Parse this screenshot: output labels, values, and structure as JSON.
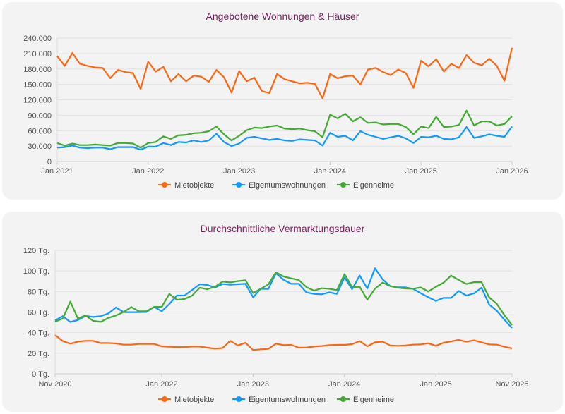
{
  "colors": {
    "Mietobjekte": "#ff6611",
    "Eigentumswohnungen": "#1199ff",
    "Eigenheime": "#44aa33",
    "title": "#7b1f5e"
  },
  "chart_data": [
    {
      "type": "line",
      "title": "Angebotene Wohnungen & Häuser",
      "xlabel": "",
      "ylabel": "",
      "x_range": [
        "2021-01",
        "2026-01"
      ],
      "ylim": [
        0,
        240000
      ],
      "y_ticks": [
        "0",
        "30.000",
        "60.000",
        "90.000",
        "120.000",
        "150.000",
        "180.000",
        "210.000",
        "240.000"
      ],
      "y_tick_values": [
        0,
        30000,
        60000,
        90000,
        120000,
        150000,
        180000,
        210000,
        240000
      ],
      "x_ticks": [
        "Jan 2021",
        "Jan 2022",
        "Jan 2023",
        "Jan 2024",
        "Jan 2025",
        "Jan 2026"
      ],
      "x_tick_dates": [
        "2021-01",
        "2022-01",
        "2023-01",
        "2024-01",
        "2025-01",
        "2026-01"
      ],
      "grid": true,
      "legend": "bottom",
      "x": [
        "2021-01",
        "2021-02",
        "2021-03",
        "2021-04",
        "2021-05",
        "2021-06",
        "2021-07",
        "2021-08",
        "2021-09",
        "2021-10",
        "2021-11",
        "2021-12",
        "2022-01",
        "2022-02",
        "2022-03",
        "2022-04",
        "2022-05",
        "2022-06",
        "2022-07",
        "2022-08",
        "2022-09",
        "2022-10",
        "2022-11",
        "2022-12",
        "2023-01",
        "2023-02",
        "2023-03",
        "2023-04",
        "2023-05",
        "2023-06",
        "2023-07",
        "2023-08",
        "2023-09",
        "2023-10",
        "2023-11",
        "2023-12",
        "2024-01",
        "2024-02",
        "2024-03",
        "2024-04",
        "2024-05",
        "2024-06",
        "2024-07",
        "2024-08",
        "2024-09",
        "2024-10",
        "2024-11",
        "2024-12",
        "2025-01",
        "2025-02",
        "2025-03",
        "2025-04",
        "2025-05",
        "2025-06",
        "2025-07",
        "2025-08",
        "2025-09",
        "2025-10",
        "2025-11",
        "2025-12",
        "2026-01"
      ],
      "series": [
        {
          "name": "Mietobjekte",
          "values": [
            205000,
            186000,
            211000,
            190000,
            186000,
            183000,
            182000,
            162000,
            178000,
            174000,
            172000,
            141000,
            194000,
            175000,
            184000,
            156000,
            170000,
            156000,
            167000,
            165000,
            155000,
            178000,
            164000,
            134000,
            176000,
            156000,
            163000,
            137000,
            133000,
            170000,
            160000,
            156000,
            152000,
            153000,
            151000,
            123000,
            170000,
            162000,
            166000,
            167000,
            150000,
            179000,
            182000,
            174000,
            168000,
            179000,
            172000,
            143000,
            196000,
            185000,
            199000,
            175000,
            190000,
            182000,
            207000,
            192000,
            187000,
            200000,
            186000,
            157000,
            221000
          ]
        },
        {
          "name": "Eigentumswohnungen",
          "values": [
            27000,
            28000,
            31000,
            27000,
            26000,
            27000,
            27000,
            24000,
            28000,
            28000,
            28000,
            23000,
            29000,
            29000,
            36000,
            32000,
            38000,
            37000,
            41000,
            38000,
            41000,
            54000,
            38000,
            30000,
            35000,
            46000,
            48000,
            45000,
            42000,
            44000,
            41000,
            40000,
            43000,
            42000,
            41000,
            31000,
            56000,
            48000,
            50000,
            41000,
            59000,
            52000,
            48000,
            44000,
            47000,
            50000,
            45000,
            36000,
            48000,
            47000,
            50000,
            44000,
            43000,
            47000,
            67000,
            46000,
            49000,
            53000,
            50000,
            48000,
            68000
          ]
        },
        {
          "name": "Eigenheime",
          "values": [
            36000,
            31000,
            35000,
            32000,
            32000,
            33000,
            32000,
            31000,
            36000,
            36000,
            35000,
            27000,
            36000,
            38000,
            49000,
            44000,
            51000,
            52000,
            55000,
            56000,
            59000,
            68000,
            53000,
            41000,
            50000,
            61000,
            66000,
            65000,
            68000,
            70000,
            64000,
            63000,
            64000,
            61000,
            59000,
            47000,
            91000,
            84000,
            93000,
            78000,
            86000,
            75000,
            76000,
            72000,
            73000,
            73000,
            67000,
            53000,
            68000,
            65000,
            87000,
            67000,
            68000,
            71000,
            99000,
            70000,
            78000,
            78000,
            70000,
            73000,
            88000
          ]
        }
      ]
    },
    {
      "type": "line",
      "title": "Durchschnittliche Vermarktungsdauer",
      "xlabel": "",
      "ylabel": "",
      "x_range": [
        "2020-11",
        "2025-11"
      ],
      "ylim": [
        0,
        120
      ],
      "y_ticks": [
        "0 Tg.",
        "20 Tg.",
        "40 Tg.",
        "60 Tg.",
        "80 Tg.",
        "100 Tg.",
        "120 Tg."
      ],
      "y_tick_values": [
        0,
        20,
        40,
        60,
        80,
        100,
        120
      ],
      "x_ticks": [
        "Nov 2020",
        "Jan 2022",
        "Jan 2023",
        "Jan 2024",
        "Jan 2025",
        "Nov 2025"
      ],
      "x_tick_dates": [
        "2020-11",
        "2022-01",
        "2023-01",
        "2024-01",
        "2025-01",
        "2025-11"
      ],
      "grid": true,
      "legend": "bottom",
      "x": [
        "2020-11",
        "2020-12",
        "2021-01",
        "2021-02",
        "2021-03",
        "2021-04",
        "2021-05",
        "2021-06",
        "2021-07",
        "2021-08",
        "2021-09",
        "2021-10",
        "2021-11",
        "2021-12",
        "2022-01",
        "2022-02",
        "2022-03",
        "2022-04",
        "2022-05",
        "2022-06",
        "2022-07",
        "2022-08",
        "2022-09",
        "2022-10",
        "2022-11",
        "2022-12",
        "2023-01",
        "2023-02",
        "2023-03",
        "2023-04",
        "2023-05",
        "2023-06",
        "2023-07",
        "2023-08",
        "2023-09",
        "2023-10",
        "2023-11",
        "2023-12",
        "2024-01",
        "2024-02",
        "2024-03",
        "2024-04",
        "2024-05",
        "2024-06",
        "2024-07",
        "2024-08",
        "2024-09",
        "2024-10",
        "2024-11",
        "2024-12",
        "2025-01",
        "2025-02",
        "2025-03",
        "2025-04",
        "2025-05",
        "2025-06",
        "2025-07",
        "2025-08",
        "2025-09",
        "2025-10",
        "2025-11"
      ],
      "series": [
        {
          "name": "Mietobjekte",
          "values": [
            37.7,
            31.8,
            29.3,
            31.3,
            32,
            32,
            29.9,
            29.9,
            29.5,
            28.3,
            28.3,
            29,
            29,
            29,
            26.7,
            26.3,
            26,
            26,
            26.5,
            26.5,
            25.4,
            24.5,
            25.1,
            32,
            27.6,
            30.2,
            23.1,
            23.8,
            24.2,
            29.3,
            27.9,
            28.1,
            25.4,
            25.6,
            26.5,
            27,
            27.9,
            28.1,
            28.1,
            28.8,
            31.8,
            26.7,
            30.6,
            31.3,
            27.6,
            27.2,
            27.6,
            28.3,
            28.6,
            29.7,
            27.2,
            30.2,
            31.5,
            32.9,
            31.1,
            32.5,
            30.6,
            28.6,
            28.3,
            26.3,
            24.7
          ]
        },
        {
          "name": "Eigentumswohnungen",
          "values": [
            51.9,
            56,
            50.3,
            52.3,
            56.2,
            55.3,
            56,
            58.7,
            64.5,
            59.9,
            59.9,
            59.9,
            60.1,
            65.1,
            60.8,
            67.9,
            76.1,
            76.1,
            81.6,
            87.1,
            86.4,
            83.9,
            87.3,
            86.6,
            87.1,
            87.5,
            74.3,
            82.7,
            82.5,
            97.8,
            91.4,
            87.5,
            87.5,
            79.1,
            77.7,
            77.3,
            79.3,
            77.7,
            93.7,
            82.3,
            95.5,
            82.9,
            102.6,
            91.9,
            85.3,
            84.1,
            84.1,
            82.7,
            78.4,
            74.5,
            70.9,
            73.8,
            73.8,
            80.5,
            76.1,
            78.2,
            83.7,
            67.4,
            61.3,
            52.6,
            44.6
          ]
        },
        {
          "name": "Eigenheime",
          "values": [
            50.7,
            53.7,
            70.2,
            53.7,
            56.7,
            51.4,
            50.5,
            54.4,
            56.7,
            60.1,
            64.9,
            60.8,
            60.8,
            65.1,
            65.1,
            77.7,
            72,
            72.7,
            76.1,
            83.7,
            82.3,
            84.6,
            89.6,
            88.9,
            90.1,
            91,
            78.6,
            82.7,
            86.9,
            98.7,
            94.6,
            92.8,
            91.2,
            84.3,
            80.9,
            83.2,
            82.7,
            81.4,
            96.9,
            84.3,
            84.6,
            72,
            82.7,
            88.7,
            85.3,
            83.7,
            83,
            82.7,
            84.1,
            80,
            84.6,
            88.5,
            95.5,
            91.2,
            87.3,
            89.1,
            89.1,
            74.3,
            68.1,
            57.1,
            47.3
          ]
        }
      ]
    }
  ]
}
